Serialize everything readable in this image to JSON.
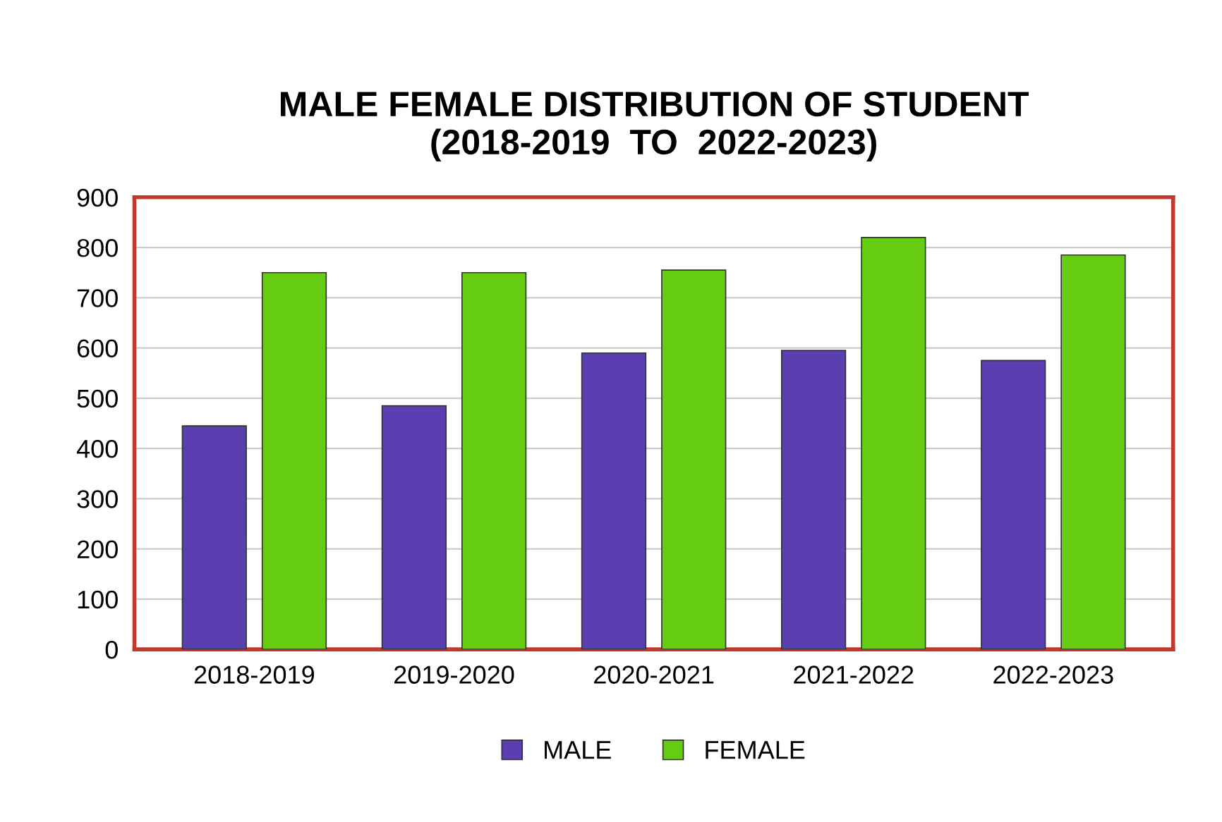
{
  "chart_data": {
    "type": "bar",
    "title": "MALE FEMALE DISTRIBUTION OF STUDENT\n(2018-2019  TO  2022-2023)",
    "categories": [
      "2018-2019",
      "2019-2020",
      "2020-2021",
      "2021-2022",
      "2022-2023"
    ],
    "series": [
      {
        "name": "MALE",
        "color": "#5b3fb0",
        "values": [
          445,
          485,
          590,
          595,
          575
        ]
      },
      {
        "name": "FEMALE",
        "color": "#66cc11",
        "values": [
          750,
          750,
          755,
          820,
          785
        ]
      }
    ],
    "ylim": [
      0,
      900
    ],
    "yticks": [
      0,
      100,
      200,
      300,
      400,
      500,
      600,
      700,
      800,
      900
    ],
    "grid": "y",
    "legend": "bottom"
  }
}
